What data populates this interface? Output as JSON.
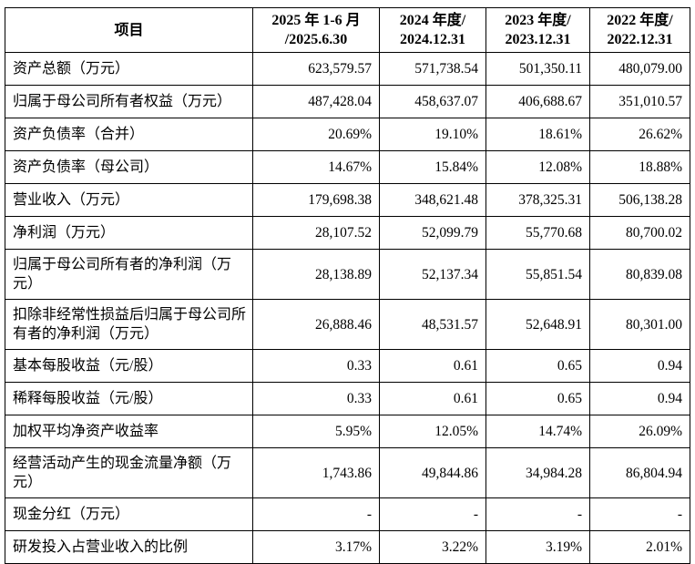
{
  "colors": {
    "border": "#000000",
    "text": "#000000",
    "background": "#ffffff"
  },
  "table": {
    "header": {
      "item_label": "项目",
      "periods": [
        {
          "line1": "2025 年 1-6 月",
          "line2": "/2025.6.30"
        },
        {
          "line1": "2024 年度/",
          "line2": "2024.12.31"
        },
        {
          "line1": "2023 年度/",
          "line2": "2023.12.31"
        },
        {
          "line1": "2022 年度/",
          "line2": "2022.12.31"
        }
      ]
    },
    "rows": [
      {
        "label": "资产总额（万元）",
        "values": [
          "623,579.57",
          "571,738.54",
          "501,350.11",
          "480,079.00"
        ]
      },
      {
        "label": "归属于母公司所有者权益（万元）",
        "values": [
          "487,428.04",
          "458,637.07",
          "406,688.67",
          "351,010.57"
        ]
      },
      {
        "label": "资产负债率（合并）",
        "values": [
          "20.69%",
          "19.10%",
          "18.61%",
          "26.62%"
        ]
      },
      {
        "label": "资产负债率（母公司）",
        "values": [
          "14.67%",
          "15.84%",
          "12.08%",
          "18.88%"
        ]
      },
      {
        "label": "营业收入（万元）",
        "values": [
          "179,698.38",
          "348,621.48",
          "378,325.31",
          "506,138.28"
        ]
      },
      {
        "label": "净利润（万元）",
        "values": [
          "28,107.52",
          "52,099.79",
          "55,770.68",
          "80,700.02"
        ]
      },
      {
        "label": "归属于母公司所有者的净利润（万元）",
        "values": [
          "28,138.89",
          "52,137.34",
          "55,851.54",
          "80,839.08"
        ]
      },
      {
        "label": "扣除非经常性损益后归属于母公司所有者的净利润（万元）",
        "values": [
          "26,888.46",
          "48,531.57",
          "52,648.91",
          "80,301.00"
        ]
      },
      {
        "label": "基本每股收益（元/股）",
        "values": [
          "0.33",
          "0.61",
          "0.65",
          "0.94"
        ]
      },
      {
        "label": "稀释每股收益（元/股）",
        "values": [
          "0.33",
          "0.61",
          "0.65",
          "0.94"
        ]
      },
      {
        "label": "加权平均净资产收益率",
        "values": [
          "5.95%",
          "12.05%",
          "14.74%",
          "26.09%"
        ]
      },
      {
        "label": "经营活动产生的现金流量净额（万元）",
        "values": [
          "1,743.86",
          "49,844.86",
          "34,984.28",
          "86,804.94"
        ]
      },
      {
        "label": "现金分红（万元）",
        "values": [
          "-",
          "-",
          "-",
          "-"
        ]
      },
      {
        "label": "研发投入占营业收入的比例",
        "values": [
          "3.17%",
          "3.22%",
          "3.19%",
          "2.01%"
        ]
      }
    ]
  }
}
